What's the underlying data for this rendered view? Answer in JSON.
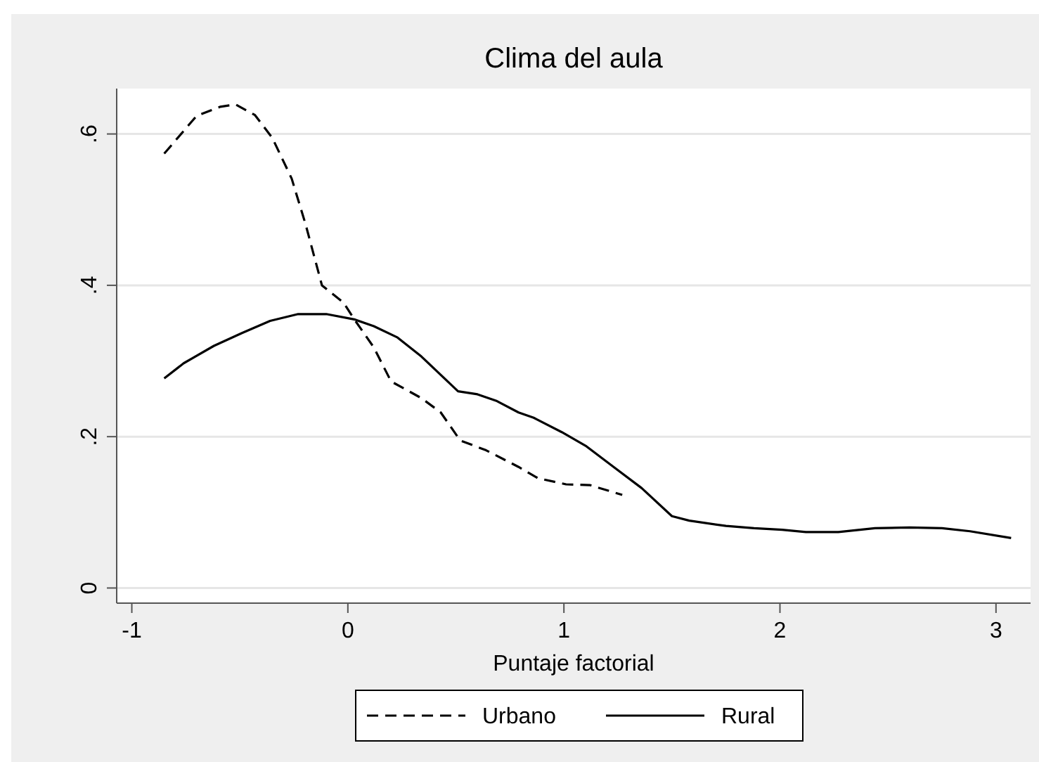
{
  "chart_data": {
    "type": "line",
    "title": "Clima del aula",
    "xlabel": "Puntaje factorial",
    "xlim": [
      -1.07,
      3.16
    ],
    "ylim": [
      -0.02,
      0.66
    ],
    "xticks": [
      -1,
      0,
      1,
      2,
      3
    ],
    "yticks": [
      0,
      {
        "value": 0.2,
        "label": ".2"
      },
      {
        "value": 0.4,
        "label": ".4"
      },
      {
        "value": 0.6,
        "label": ".6"
      }
    ],
    "grid": "y",
    "legend": "bottom",
    "marker": "none",
    "series": [
      {
        "name": "Urbano",
        "color": "#000000",
        "line_style": "dashed",
        "x": [
          -0.85,
          -0.7,
          -0.59,
          -0.52,
          -0.43,
          -0.35,
          -0.26,
          -0.195,
          -0.12,
          -0.02,
          0.03,
          0.12,
          0.2,
          0.34,
          0.43,
          0.52,
          0.64,
          0.79,
          0.88,
          1.01,
          1.12,
          1.27
        ],
        "values": [
          0.574,
          0.624,
          0.636,
          0.639,
          0.625,
          0.595,
          0.541,
          0.48,
          0.4,
          0.377,
          0.355,
          0.318,
          0.273,
          0.251,
          0.232,
          0.195,
          0.182,
          0.16,
          0.145,
          0.137,
          0.136,
          0.123
        ]
      },
      {
        "name": "Rural",
        "color": "#000000",
        "line_style": "solid",
        "x": [
          -0.85,
          -0.76,
          -0.62,
          -0.49,
          -0.36,
          -0.23,
          -0.1,
          0.03,
          0.12,
          0.23,
          0.34,
          0.51,
          0.6,
          0.69,
          0.79,
          0.86,
          0.99,
          1.1,
          1.23,
          1.36,
          1.5,
          1.58,
          1.75,
          1.88,
          2.01,
          2.12,
          2.27,
          2.44,
          2.6,
          2.75,
          2.88,
          3.07
        ],
        "values": [
          0.277,
          0.297,
          0.32,
          0.337,
          0.353,
          0.362,
          0.362,
          0.355,
          0.346,
          0.331,
          0.306,
          0.26,
          0.256,
          0.247,
          0.232,
          0.225,
          0.206,
          0.188,
          0.16,
          0.132,
          0.095,
          0.089,
          0.082,
          0.079,
          0.077,
          0.074,
          0.074,
          0.079,
          0.08,
          0.079,
          0.075,
          0.066
        ]
      }
    ]
  }
}
